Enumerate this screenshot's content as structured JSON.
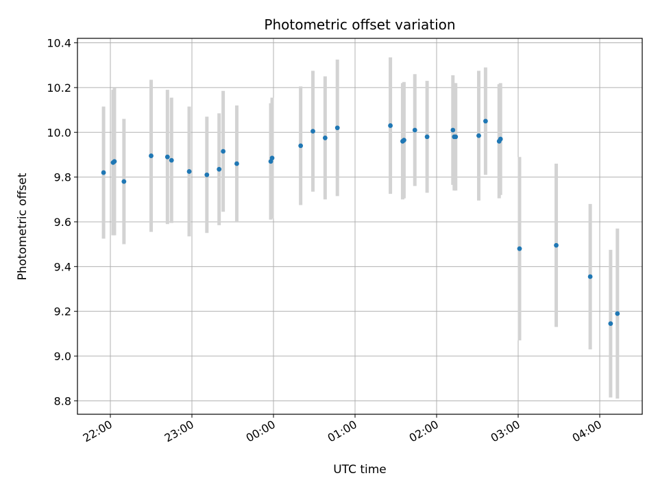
{
  "chart_data": {
    "type": "scatter",
    "title": "Photometric offset variation",
    "xlabel": "UTC time",
    "ylabel": "Photometric offset",
    "x_ticks": [
      "22:00",
      "23:00",
      "00:00",
      "01:00",
      "02:00",
      "03:00",
      "04:00"
    ],
    "y_ticks": [
      "8.8",
      "9.0",
      "9.2",
      "9.4",
      "9.6",
      "9.8",
      "10.0",
      "10.2",
      "10.4"
    ],
    "ylim": [
      8.74,
      10.42
    ],
    "grid": true,
    "point_color": "#1f77b4",
    "errorbar_color": "#d3d3d3",
    "series": [
      {
        "points": [
          {
            "t": "21:55",
            "y": 9.82,
            "err": 0.295
          },
          {
            "t": "22:02",
            "y": 9.865,
            "err": 0.325
          },
          {
            "t": "22:03",
            "y": 9.87,
            "err": 0.33
          },
          {
            "t": "22:10",
            "y": 9.78,
            "err": 0.28
          },
          {
            "t": "22:30",
            "y": 9.895,
            "err": 0.34
          },
          {
            "t": "22:42",
            "y": 9.89,
            "err": 0.3
          },
          {
            "t": "22:45",
            "y": 9.875,
            "err": 0.28
          },
          {
            "t": "22:58",
            "y": 9.825,
            "err": 0.29
          },
          {
            "t": "23:11",
            "y": 9.81,
            "err": 0.26
          },
          {
            "t": "23:20",
            "y": 9.835,
            "err": 0.25
          },
          {
            "t": "23:23",
            "y": 9.915,
            "err": 0.27
          },
          {
            "t": "23:33",
            "y": 9.86,
            "err": 0.26
          },
          {
            "t": "23:58",
            "y": 9.87,
            "err": 0.26
          },
          {
            "t": "23:59",
            "y": 9.885,
            "err": 0.27
          },
          {
            "t": "00:20",
            "y": 9.94,
            "err": 0.265
          },
          {
            "t": "00:29",
            "y": 10.005,
            "err": 0.27
          },
          {
            "t": "00:38",
            "y": 9.975,
            "err": 0.275
          },
          {
            "t": "00:47",
            "y": 10.02,
            "err": 0.305
          },
          {
            "t": "01:26",
            "y": 10.03,
            "err": 0.305
          },
          {
            "t": "01:35",
            "y": 9.96,
            "err": 0.26
          },
          {
            "t": "01:36",
            "y": 9.965,
            "err": 0.26
          },
          {
            "t": "01:44",
            "y": 10.01,
            "err": 0.25
          },
          {
            "t": "01:53",
            "y": 9.98,
            "err": 0.25
          },
          {
            "t": "02:12",
            "y": 10.01,
            "err": 0.245
          },
          {
            "t": "02:13",
            "y": 9.98,
            "err": 0.24
          },
          {
            "t": "02:14",
            "y": 9.98,
            "err": 0.24
          },
          {
            "t": "02:31",
            "y": 9.985,
            "err": 0.29
          },
          {
            "t": "02:36",
            "y": 10.05,
            "err": 0.24
          },
          {
            "t": "02:46",
            "y": 9.96,
            "err": 0.255
          },
          {
            "t": "02:47",
            "y": 9.97,
            "err": 0.25
          },
          {
            "t": "03:01",
            "y": 9.48,
            "err": 0.41
          },
          {
            "t": "03:28",
            "y": 9.495,
            "err": 0.365
          },
          {
            "t": "03:53",
            "y": 9.355,
            "err": 0.325
          },
          {
            "t": "04:08",
            "y": 9.145,
            "err": 0.33
          },
          {
            "t": "04:13",
            "y": 9.19,
            "err": 0.38
          }
        ]
      }
    ]
  }
}
